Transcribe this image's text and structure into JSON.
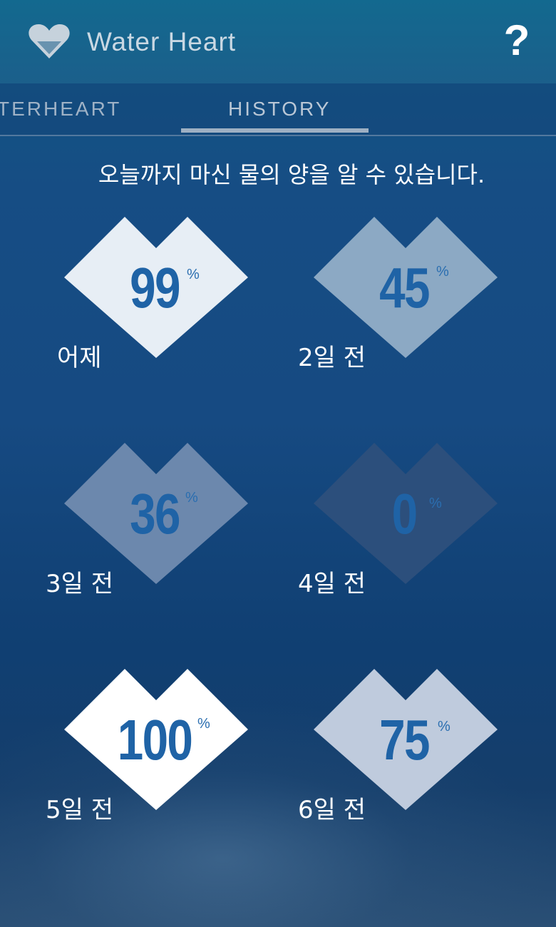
{
  "header": {
    "title": "Water Heart",
    "help_label": "?",
    "logo_icon": "heart-icon"
  },
  "tabs": [
    {
      "label": "TERHEART",
      "active": false
    },
    {
      "label": "HISTORY",
      "active": true
    }
  ],
  "subtitle": "오늘까지 마신 물의 양을 알 수 있습니다.",
  "history": [
    {
      "value": "99",
      "unit": "%",
      "label": "어제",
      "fill": 0.99,
      "color": "#e7eef5"
    },
    {
      "value": "45",
      "unit": "%",
      "label": "2일 전",
      "fill": 0.45,
      "color": "#8ca9c4"
    },
    {
      "value": "36",
      "unit": "%",
      "label": "3일 전",
      "fill": 0.36,
      "color": "#6c88ad"
    },
    {
      "value": "0",
      "unit": "%",
      "label": "4일 전",
      "fill": 0.0,
      "color": "#2c4f7c"
    },
    {
      "value": "100",
      "unit": "%",
      "label": "5일 전",
      "fill": 1.0,
      "color": "#ffffff"
    },
    {
      "value": "75",
      "unit": "%",
      "label": "6일 전",
      "fill": 0.75,
      "color": "#bfcbdd"
    }
  ],
  "colors": {
    "number_text": "#1f63a6",
    "label_text": "#ffffff"
  }
}
